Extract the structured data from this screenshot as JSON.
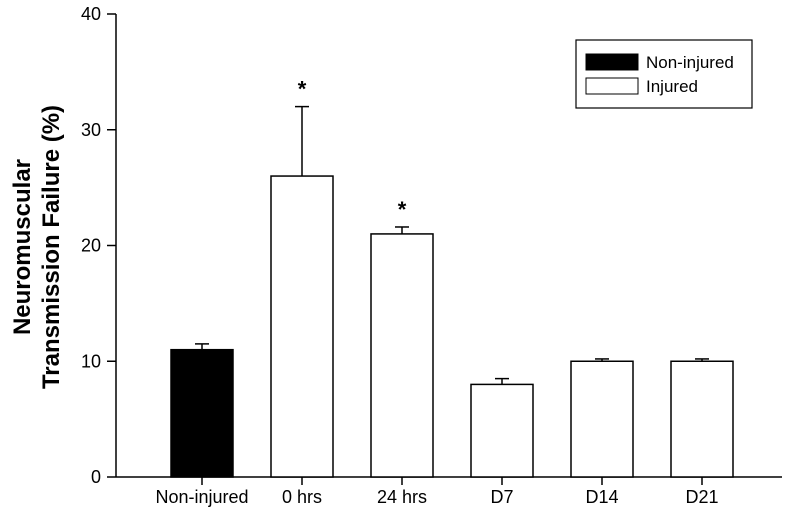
{
  "chart_data": {
    "type": "bar",
    "title": "",
    "xlabel": "",
    "ylabel_lines": [
      "Neuromuscular",
      "Transmission Failure (%)"
    ],
    "ylim": [
      0,
      40
    ],
    "yticks": [
      "0",
      "10",
      "20",
      "30",
      "40"
    ],
    "categories": [
      "Non-injured",
      "0 hrs",
      "24 hrs",
      "D7",
      "D14",
      "D21"
    ],
    "values": [
      11,
      26,
      21,
      8,
      10,
      10
    ],
    "errors": [
      0.5,
      6,
      0.6,
      0.5,
      0.2,
      0.2
    ],
    "groups": [
      "Non-injured",
      "Injured",
      "Injured",
      "Injured",
      "Injured",
      "Injured"
    ],
    "annotations": [
      "",
      "*",
      "*",
      "",
      "",
      ""
    ],
    "legend": {
      "position": "top-right",
      "entries": [
        {
          "label": "Non-injured",
          "color": "#000000"
        },
        {
          "label": "Injured",
          "color": "#ffffff"
        }
      ]
    },
    "grid": false
  }
}
